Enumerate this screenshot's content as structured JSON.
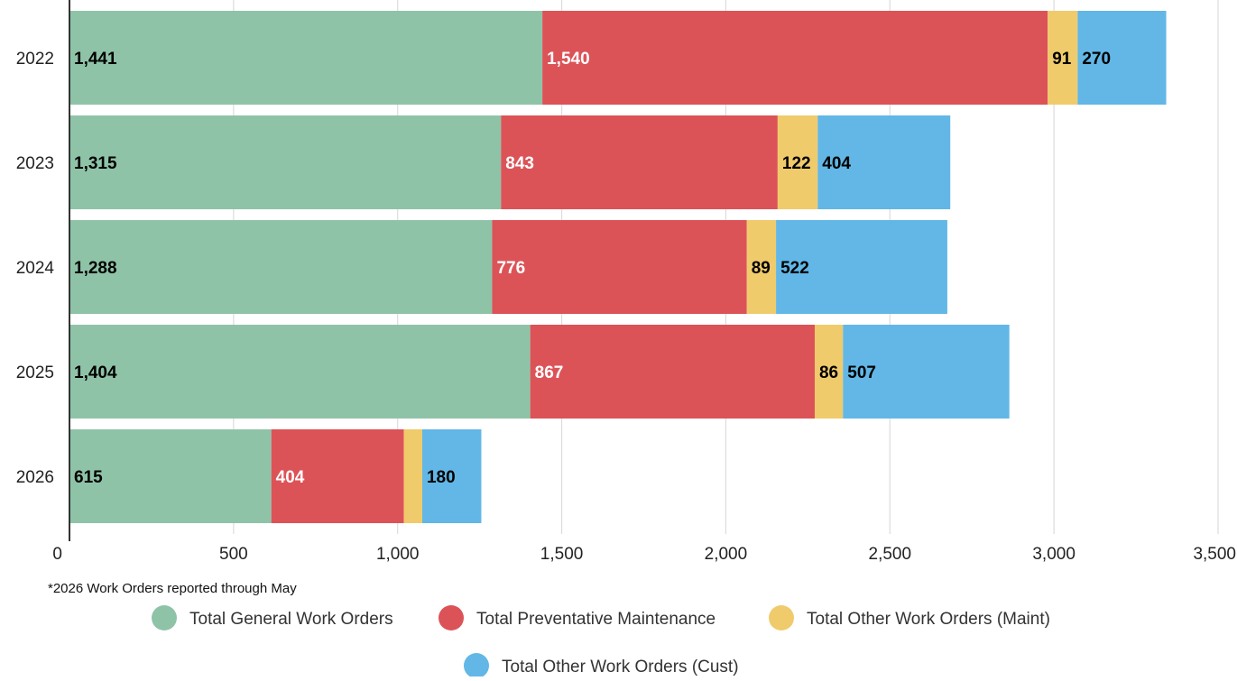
{
  "chart_data": {
    "type": "bar",
    "orientation": "horizontal",
    "stacked": true,
    "categories": [
      "2022",
      "2023",
      "2024",
      "2025",
      "2026"
    ],
    "series": [
      {
        "name": "Total General Work Orders",
        "color": "#8fc3a8",
        "label_color": "#000000",
        "values": [
          1441,
          1315,
          1288,
          1404,
          615
        ]
      },
      {
        "name": "Total Preventative Maintenance",
        "color": "#dc5357",
        "label_color": "#ffffff",
        "values": [
          1540,
          843,
          776,
          867,
          404
        ]
      },
      {
        "name": "Total Other Work Orders (Maint)",
        "color": "#f0cb6c",
        "label_color": "#000000",
        "values": [
          91,
          122,
          89,
          86,
          56
        ]
      },
      {
        "name": "Total Other Work Orders (Cust)",
        "color": "#62b7e6",
        "label_color": "#000000",
        "values": [
          270,
          404,
          522,
          507,
          180
        ]
      }
    ],
    "data_labels": [
      [
        "1,441",
        "1,540",
        "91",
        "270"
      ],
      [
        "1,315",
        "843",
        "122",
        "404"
      ],
      [
        "1,288",
        "776",
        "89",
        "522"
      ],
      [
        "1,404",
        "867",
        "86",
        "507"
      ],
      [
        "615",
        "404",
        "",
        "180"
      ]
    ],
    "x_ticks": [
      0,
      500,
      1000,
      1500,
      2000,
      2500,
      3000,
      3500
    ],
    "x_tick_labels": [
      "0",
      "500",
      "1,000",
      "1,500",
      "2,000",
      "2,500",
      "3,000",
      "3,500"
    ],
    "xlim": [
      0,
      3500
    ],
    "grid": true,
    "legend_position": "bottom",
    "footnote": "*2026 Work Orders reported through May",
    "title": "",
    "xlabel": "",
    "ylabel": ""
  }
}
